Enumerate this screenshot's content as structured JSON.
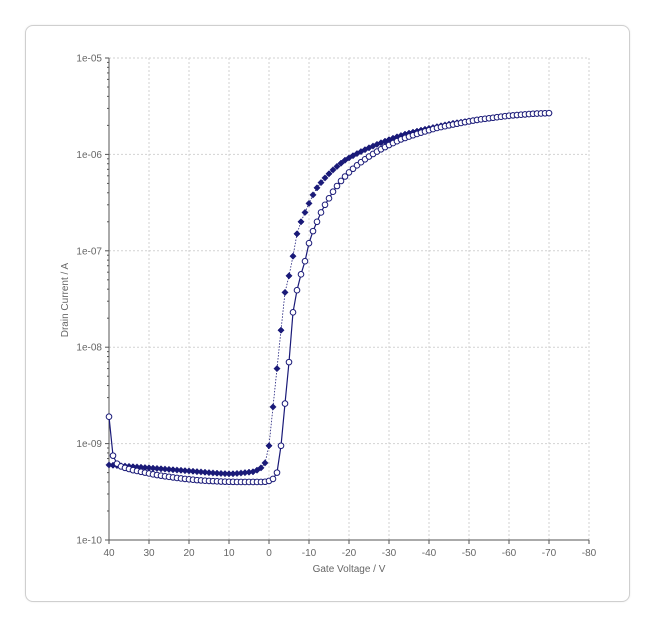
{
  "chart_data": {
    "type": "scatter",
    "xlabel": "Gate Voltage / V",
    "ylabel": "Drain Current / A",
    "x_ticks": [
      "40",
      "30",
      "20",
      "10",
      "0",
      "-10",
      "-20",
      "-30",
      "-40",
      "-50",
      "-60",
      "-70",
      "-80"
    ],
    "y_ticks": [
      "1e-10",
      "1e-09",
      "1e-08",
      "1e-07",
      "1e-06",
      "1e-05"
    ],
    "xlim": [
      40,
      -80
    ],
    "ylim": [
      1e-10,
      1e-05
    ],
    "y_scale": "log",
    "grid": true,
    "colors": {
      "series": "#1a1a78",
      "grid": "#d2d2d2",
      "axis": "#555555"
    },
    "series": [
      {
        "marker": "filled-diamond",
        "line": "dotted",
        "x": [
          40,
          39,
          38,
          37,
          36,
          35,
          34,
          33,
          32,
          31,
          30,
          29,
          28,
          27,
          26,
          25,
          24,
          23,
          22,
          21,
          20,
          19,
          18,
          17,
          16,
          15,
          14,
          13,
          12,
          11,
          10,
          9,
          8,
          7,
          6,
          5,
          4,
          3,
          2,
          1,
          0,
          -1,
          -2,
          -3,
          -4,
          -5,
          -6,
          -7,
          -8,
          -9,
          -10,
          -11,
          -12,
          -13,
          -14,
          -15,
          -16,
          -17,
          -18,
          -19,
          -20,
          -21,
          -22,
          -23,
          -24,
          -25,
          -26,
          -27,
          -28,
          -29,
          -30,
          -31,
          -32,
          -33,
          -34,
          -35,
          -36,
          -37,
          -38,
          -39,
          -40,
          -41,
          -42,
          -43,
          -44,
          -45,
          -46,
          -47,
          -48,
          -49,
          -50,
          -51,
          -52,
          -53,
          -54,
          -55,
          -56,
          -57,
          -58,
          -59,
          -60,
          -61,
          -62,
          -63,
          -64,
          -65,
          -66,
          -67,
          -68,
          -69,
          -70
        ],
        "y": [
          6e-10,
          5.96e-10,
          5.92e-10,
          5.88e-10,
          5.84e-10,
          5.8e-10,
          5.76e-10,
          5.72e-10,
          5.68e-10,
          5.64e-10,
          5.6e-10,
          5.56e-10,
          5.52e-10,
          5.48e-10,
          5.44e-10,
          5.4e-10,
          5.36e-10,
          5.32e-10,
          5.28e-10,
          5.24e-10,
          5.2e-10,
          5.16e-10,
          5.12e-10,
          5.08e-10,
          5.04e-10,
          5e-10,
          4.96e-10,
          4.93e-10,
          4.9e-10,
          4.88e-10,
          4.86e-10,
          4.87e-10,
          4.9e-10,
          4.95e-10,
          5e-10,
          5.05e-10,
          5.1e-10,
          5.3e-10,
          5.6e-10,
          6.3e-10,
          9.5e-10,
          2.4e-09,
          6e-09,
          1.5e-08,
          3.7e-08,
          5.5e-08,
          8.8e-08,
          1.5e-07,
          2e-07,
          2.5e-07,
          3.1e-07,
          3.8e-07,
          4.5e-07,
          5.1e-07,
          5.7e-07,
          6.3e-07,
          6.9e-07,
          7.5e-07,
          8.1e-07,
          8.7e-07,
          9.2e-07,
          9.7e-07,
          1.02e-06,
          1.07e-06,
          1.12e-06,
          1.17e-06,
          1.22e-06,
          1.27e-06,
          1.32e-06,
          1.37e-06,
          1.42e-06,
          1.47e-06,
          1.52e-06,
          1.57e-06,
          1.62e-06,
          1.66e-06,
          1.7e-06,
          1.74e-06,
          1.78e-06,
          1.82e-06,
          1.86e-06,
          1.9e-06,
          1.94e-06,
          1.98e-06,
          2.02e-06,
          2.06e-06,
          2.1e-06,
          2.13e-06,
          2.16e-06,
          2.19e-06,
          2.22e-06,
          2.25e-06,
          2.28e-06,
          2.31e-06,
          2.34e-06,
          2.37e-06,
          2.4e-06,
          2.43e-06,
          2.46e-06,
          2.49e-06,
          2.52e-06,
          2.54e-06,
          2.56e-06,
          2.58e-06,
          2.6e-06,
          2.62e-06,
          2.64e-06,
          2.65e-06,
          2.66e-06,
          2.67e-06,
          2.68e-06
        ]
      },
      {
        "marker": "open-circle",
        "line": "solid",
        "x": [
          40,
          39,
          38,
          37,
          36,
          35,
          34,
          33,
          32,
          31,
          30,
          29,
          28,
          27,
          26,
          25,
          24,
          23,
          22,
          21,
          20,
          19,
          18,
          17,
          16,
          15,
          14,
          13,
          12,
          11,
          10,
          9,
          8,
          7,
          6,
          5,
          4,
          3,
          2,
          1,
          0,
          -1,
          -2,
          -3,
          -4,
          -5,
          -6,
          -7,
          -8,
          -9,
          -10,
          -11,
          -12,
          -13,
          -14,
          -15,
          -16,
          -17,
          -18,
          -19,
          -20,
          -21,
          -22,
          -23,
          -24,
          -25,
          -26,
          -27,
          -28,
          -29,
          -30,
          -31,
          -32,
          -33,
          -34,
          -35,
          -36,
          -37,
          -38,
          -39,
          -40,
          -41,
          -42,
          -43,
          -44,
          -45,
          -46,
          -47,
          -48,
          -49,
          -50,
          -51,
          -52,
          -53,
          -54,
          -55,
          -56,
          -57,
          -58,
          -59,
          -60,
          -61,
          -62,
          -63,
          -64,
          -65,
          -66,
          -67,
          -68,
          -69,
          -70
        ],
        "y": [
          1.9e-09,
          7.5e-10,
          6.2e-10,
          5.8e-10,
          5.6e-10,
          5.45e-10,
          5.3e-10,
          5.2e-10,
          5.1e-10,
          5e-10,
          4.9e-10,
          4.8e-10,
          4.72e-10,
          4.65e-10,
          4.58e-10,
          4.52e-10,
          4.46e-10,
          4.4e-10,
          4.35e-10,
          4.3e-10,
          4.26e-10,
          4.22e-10,
          4.18e-10,
          4.15e-10,
          4.12e-10,
          4.1e-10,
          4.08e-10,
          4.06e-10,
          4.04e-10,
          4.03e-10,
          4.02e-10,
          4.01e-10,
          4e-10,
          4e-10,
          4e-10,
          4e-10,
          4e-10,
          4e-10,
          4e-10,
          4.02e-10,
          4.1e-10,
          4.3e-10,
          5e-10,
          9.5e-10,
          2.6e-09,
          7e-09,
          2.3e-08,
          3.9e-08,
          5.7e-08,
          7.8e-08,
          1.2e-07,
          1.6e-07,
          2e-07,
          2.5e-07,
          3e-07,
          3.5e-07,
          4.1e-07,
          4.7e-07,
          5.3e-07,
          5.9e-07,
          6.5e-07,
          7.1e-07,
          7.7e-07,
          8.3e-07,
          8.9e-07,
          9.5e-07,
          1.01e-06,
          1.07e-06,
          1.13e-06,
          1.19e-06,
          1.25e-06,
          1.31e-06,
          1.37e-06,
          1.43e-06,
          1.48e-06,
          1.53e-06,
          1.58e-06,
          1.63e-06,
          1.68e-06,
          1.73e-06,
          1.78e-06,
          1.83e-06,
          1.88e-06,
          1.92e-06,
          1.96e-06,
          2e-06,
          2.04e-06,
          2.08e-06,
          2.12e-06,
          2.16e-06,
          2.2e-06,
          2.24e-06,
          2.28e-06,
          2.31e-06,
          2.34e-06,
          2.37e-06,
          2.4e-06,
          2.43e-06,
          2.46e-06,
          2.49e-06,
          2.52e-06,
          2.54e-06,
          2.56e-06,
          2.58e-06,
          2.6e-06,
          2.62e-06,
          2.64e-06,
          2.65e-06,
          2.66e-06,
          2.67e-06,
          2.68e-06
        ]
      }
    ]
  }
}
